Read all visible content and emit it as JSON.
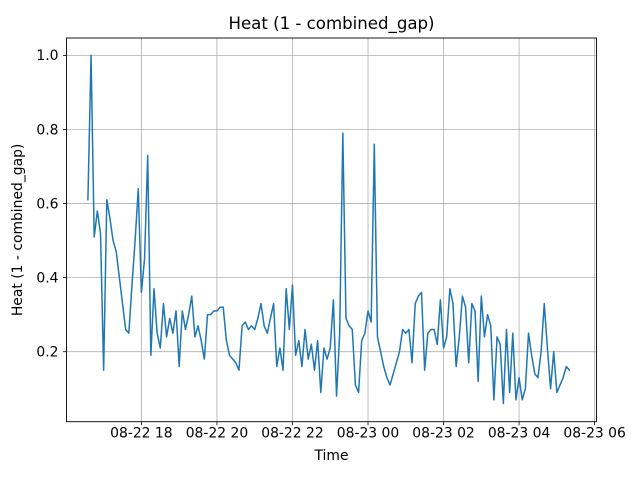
{
  "chart_data": {
    "type": "line",
    "title": "Heat (1 - combined_gap)",
    "xlabel": "Time",
    "ylabel": "Heat (1 - combined_gap)",
    "series_name": "Heat (1 - combined_gap)",
    "line_color": "#1f77b4",
    "grid": true,
    "grid_color": "#b0b0b0",
    "legend": "none",
    "x_tick_labels": [
      "08-22 18",
      "08-22 20",
      "08-22 22",
      "08-23 00",
      "08-23 02",
      "08-23 04",
      "08-23 06"
    ],
    "y_tick_labels": [
      "0.2",
      "0.4",
      "0.6",
      "0.8",
      "1.0"
    ],
    "y_ticks": [
      0.2,
      0.4,
      0.6,
      0.8,
      1.0
    ],
    "xlim": [
      "08-22 16:01",
      "08-23 06:03"
    ],
    "ylim": [
      0.011,
      1.047
    ],
    "points": [
      [
        "08-22 16:35",
        0.61
      ],
      [
        "08-22 16:40",
        1.0
      ],
      [
        "08-22 16:45",
        0.51
      ],
      [
        "08-22 16:50",
        0.58
      ],
      [
        "08-22 16:55",
        0.52
      ],
      [
        "08-22 17:00",
        0.15
      ],
      [
        "08-22 17:05",
        0.61
      ],
      [
        "08-22 17:10",
        0.56
      ],
      [
        "08-22 17:15",
        0.5
      ],
      [
        "08-22 17:20",
        0.47
      ],
      [
        "08-22 17:25",
        0.4
      ],
      [
        "08-22 17:30",
        0.33
      ],
      [
        "08-22 17:35",
        0.26
      ],
      [
        "08-22 17:40",
        0.25
      ],
      [
        "08-22 17:45",
        0.38
      ],
      [
        "08-22 17:50",
        0.5
      ],
      [
        "08-22 17:55",
        0.64
      ],
      [
        "08-22 18:00",
        0.36
      ],
      [
        "08-22 18:05",
        0.45
      ],
      [
        "08-22 18:10",
        0.73
      ],
      [
        "08-22 18:15",
        0.19
      ],
      [
        "08-22 18:20",
        0.37
      ],
      [
        "08-22 18:25",
        0.25
      ],
      [
        "08-22 18:30",
        0.21
      ],
      [
        "08-22 18:35",
        0.33
      ],
      [
        "08-22 18:40",
        0.24
      ],
      [
        "08-22 18:45",
        0.29
      ],
      [
        "08-22 18:50",
        0.25
      ],
      [
        "08-22 18:55",
        0.31
      ],
      [
        "08-22 19:00",
        0.16
      ],
      [
        "08-22 19:05",
        0.31
      ],
      [
        "08-22 19:10",
        0.26
      ],
      [
        "08-22 19:15",
        0.3
      ],
      [
        "08-22 19:20",
        0.35
      ],
      [
        "08-22 19:25",
        0.24
      ],
      [
        "08-22 19:30",
        0.27
      ],
      [
        "08-22 19:35",
        0.23
      ],
      [
        "08-22 19:40",
        0.18
      ],
      [
        "08-22 19:45",
        0.3
      ],
      [
        "08-22 19:50",
        0.3
      ],
      [
        "08-22 19:55",
        0.31
      ],
      [
        "08-22 20:00",
        0.31
      ],
      [
        "08-22 20:05",
        0.32
      ],
      [
        "08-22 20:10",
        0.32
      ],
      [
        "08-22 20:15",
        0.23
      ],
      [
        "08-22 20:20",
        0.19
      ],
      [
        "08-22 20:25",
        0.18
      ],
      [
        "08-22 20:30",
        0.17
      ],
      [
        "08-22 20:35",
        0.15
      ],
      [
        "08-22 20:40",
        0.27
      ],
      [
        "08-22 20:45",
        0.28
      ],
      [
        "08-22 20:50",
        0.26
      ],
      [
        "08-22 20:55",
        0.27
      ],
      [
        "08-22 21:00",
        0.26
      ],
      [
        "08-22 21:05",
        0.29
      ],
      [
        "08-22 21:10",
        0.33
      ],
      [
        "08-22 21:15",
        0.27
      ],
      [
        "08-22 21:20",
        0.25
      ],
      [
        "08-22 21:25",
        0.29
      ],
      [
        "08-22 21:30",
        0.33
      ],
      [
        "08-22 21:35",
        0.16
      ],
      [
        "08-22 21:40",
        0.21
      ],
      [
        "08-22 21:45",
        0.15
      ],
      [
        "08-22 21:50",
        0.37
      ],
      [
        "08-22 21:55",
        0.26
      ],
      [
        "08-22 22:00",
        0.38
      ],
      [
        "08-22 22:05",
        0.19
      ],
      [
        "08-22 22:10",
        0.23
      ],
      [
        "08-22 22:15",
        0.16
      ],
      [
        "08-22 22:20",
        0.26
      ],
      [
        "08-22 22:25",
        0.18
      ],
      [
        "08-22 22:30",
        0.22
      ],
      [
        "08-22 22:35",
        0.15
      ],
      [
        "08-22 22:40",
        0.23
      ],
      [
        "08-22 22:45",
        0.09
      ],
      [
        "08-22 22:50",
        0.21
      ],
      [
        "08-22 22:55",
        0.18
      ],
      [
        "08-22 23:00",
        0.21
      ],
      [
        "08-22 23:05",
        0.34
      ],
      [
        "08-22 23:10",
        0.08
      ],
      [
        "08-22 23:15",
        0.25
      ],
      [
        "08-22 23:20",
        0.79
      ],
      [
        "08-22 23:25",
        0.29
      ],
      [
        "08-22 23:30",
        0.27
      ],
      [
        "08-22 23:35",
        0.26
      ],
      [
        "08-22 23:40",
        0.11
      ],
      [
        "08-22 23:45",
        0.09
      ],
      [
        "08-22 23:50",
        0.23
      ],
      [
        "08-22 23:55",
        0.25
      ],
      [
        "08-23 00:00",
        0.31
      ],
      [
        "08-23 00:05",
        0.28
      ],
      [
        "08-23 00:10",
        0.76
      ],
      [
        "08-23 00:15",
        0.24
      ],
      [
        "08-23 00:20",
        0.2
      ],
      [
        "08-23 00:25",
        0.16
      ],
      [
        "08-23 00:30",
        0.13
      ],
      [
        "08-23 00:35",
        0.11
      ],
      [
        "08-23 00:40",
        0.14
      ],
      [
        "08-23 00:45",
        0.17
      ],
      [
        "08-23 00:50",
        0.2
      ],
      [
        "08-23 00:55",
        0.26
      ],
      [
        "08-23 01:00",
        0.25
      ],
      [
        "08-23 01:05",
        0.26
      ],
      [
        "08-23 01:10",
        0.17
      ],
      [
        "08-23 01:15",
        0.33
      ],
      [
        "08-23 01:20",
        0.35
      ],
      [
        "08-23 01:25",
        0.36
      ],
      [
        "08-23 01:30",
        0.15
      ],
      [
        "08-23 01:35",
        0.25
      ],
      [
        "08-23 01:40",
        0.26
      ],
      [
        "08-23 01:45",
        0.26
      ],
      [
        "08-23 01:50",
        0.22
      ],
      [
        "08-23 01:55",
        0.34
      ],
      [
        "08-23 02:00",
        0.21
      ],
      [
        "08-23 02:05",
        0.24
      ],
      [
        "08-23 02:10",
        0.37
      ],
      [
        "08-23 02:15",
        0.33
      ],
      [
        "08-23 02:20",
        0.16
      ],
      [
        "08-23 02:25",
        0.24
      ],
      [
        "08-23 02:30",
        0.35
      ],
      [
        "08-23 02:35",
        0.32
      ],
      [
        "08-23 02:40",
        0.17
      ],
      [
        "08-23 02:45",
        0.33
      ],
      [
        "08-23 02:50",
        0.31
      ],
      [
        "08-23 02:55",
        0.12
      ],
      [
        "08-23 03:00",
        0.35
      ],
      [
        "08-23 03:05",
        0.24
      ],
      [
        "08-23 03:10",
        0.3
      ],
      [
        "08-23 03:15",
        0.27
      ],
      [
        "08-23 03:20",
        0.07
      ],
      [
        "08-23 03:25",
        0.24
      ],
      [
        "08-23 03:30",
        0.22
      ],
      [
        "08-23 03:35",
        0.06
      ],
      [
        "08-23 03:40",
        0.26
      ],
      [
        "08-23 03:45",
        0.09
      ],
      [
        "08-23 03:50",
        0.25
      ],
      [
        "08-23 03:55",
        0.07
      ],
      [
        "08-23 04:00",
        0.13
      ],
      [
        "08-23 04:05",
        0.07
      ],
      [
        "08-23 04:10",
        0.1
      ],
      [
        "08-23 04:15",
        0.25
      ],
      [
        "08-23 04:20",
        0.19
      ],
      [
        "08-23 04:25",
        0.14
      ],
      [
        "08-23 04:30",
        0.13
      ],
      [
        "08-23 04:35",
        0.2
      ],
      [
        "08-23 04:40",
        0.33
      ],
      [
        "08-23 04:45",
        0.21
      ],
      [
        "08-23 04:50",
        0.1
      ],
      [
        "08-23 04:55",
        0.2
      ],
      [
        "08-23 05:00",
        0.09
      ],
      [
        "08-23 05:05",
        0.11
      ],
      [
        "08-23 05:10",
        0.13
      ],
      [
        "08-23 05:15",
        0.16
      ],
      [
        "08-23 05:20",
        0.15
      ]
    ]
  }
}
